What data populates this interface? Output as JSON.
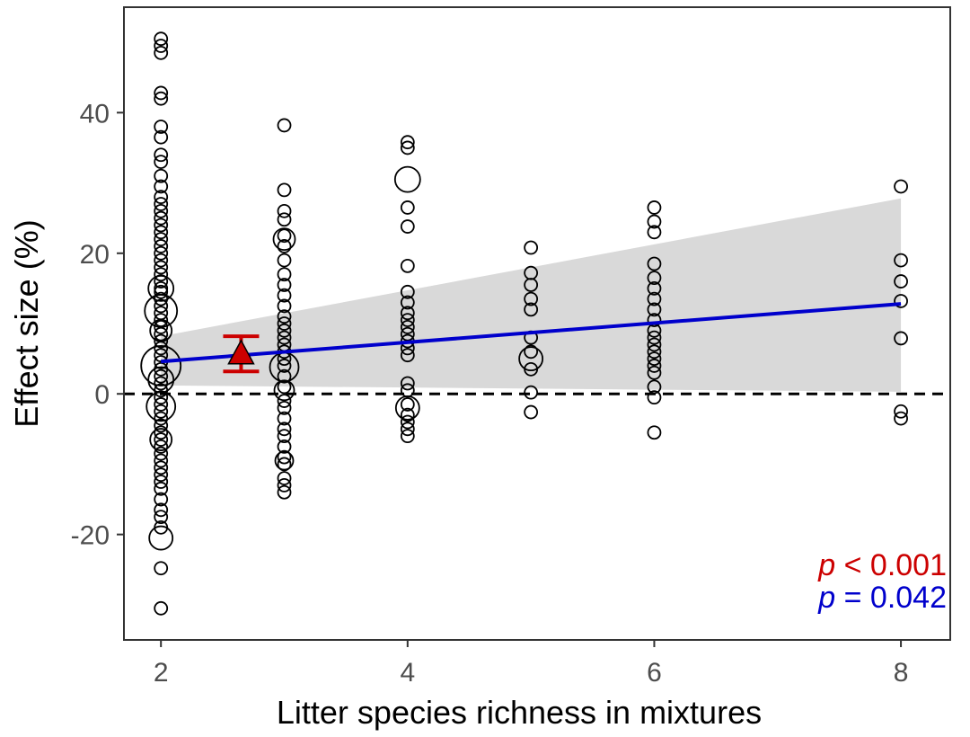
{
  "chart_data": {
    "type": "scatter",
    "xlabel": "Litter species richness in mixtures",
    "ylabel": "Effect size (%)",
    "xlim": [
      1.7,
      8.4
    ],
    "ylim": [
      -35,
      55
    ],
    "x_ticks": [
      2,
      4,
      6,
      8
    ],
    "y_ticks": [
      -20,
      0,
      20,
      40
    ],
    "grid": false,
    "reference_line": {
      "y": 0,
      "style": "dashed"
    },
    "regression": {
      "x": [
        2,
        8
      ],
      "y": [
        4.6,
        12.8
      ],
      "ci_upper": [
        8.2,
        27.8
      ],
      "ci_lower": [
        1.2,
        0.3
      ],
      "color": "#0000cc",
      "ci_color": "#d9d9d9"
    },
    "mean_effect": {
      "x": 2.65,
      "y": 5.8,
      "ci_low": 3.2,
      "ci_high": 8.2,
      "color": "#cc0000",
      "marker": "triangle"
    },
    "annotations": [
      {
        "italic": "p",
        "text": " < 0.001",
        "color": "#cc0000"
      },
      {
        "italic": "p",
        "text": " = 0.042",
        "color": "#0000cc"
      }
    ],
    "point_groups": [
      {
        "x": 2,
        "y": [
          50.5,
          49.5,
          48.5,
          42.8,
          42.0,
          38.0,
          36.5,
          34.0,
          33.0,
          31.0,
          29.5,
          28.0,
          27.0,
          26.0,
          25.0,
          24.0,
          23.0,
          22.0,
          21.0,
          20.0,
          19.0,
          18.0,
          17.0,
          16.0,
          15.0,
          14.5,
          13.5,
          12.5,
          11.5,
          10.5,
          9.5,
          8.5,
          7.5,
          6.5,
          5.5,
          4.5,
          3.5,
          2.5,
          1.5,
          0.5,
          -0.5,
          -1.5,
          -2.5,
          -3.5,
          -4.5,
          -5.5,
          -6.5,
          -7.5,
          -8.5,
          -9.5,
          -10.5,
          -11.5,
          -12.5,
          -13.5,
          -15.0,
          -16.5,
          -17.5,
          -19.0,
          -24.8,
          -30.5
        ],
        "big": [
          {
            "y": 15.0,
            "r": 14
          },
          {
            "y": 11.8,
            "r": 18
          },
          {
            "y": 9.0,
            "r": 12
          },
          {
            "y": 4.0,
            "r": 22
          },
          {
            "y": 2.0,
            "r": 14
          },
          {
            "y": -1.8,
            "r": 16
          },
          {
            "y": -6.5,
            "r": 12
          },
          {
            "y": -20.5,
            "r": 13
          }
        ]
      },
      {
        "x": 3,
        "y": [
          38.2,
          29.0,
          26.0,
          24.8,
          22.5,
          21.0,
          19.0,
          17.0,
          15.5,
          14.0,
          12.5,
          11.0,
          10.0,
          9.0,
          8.0,
          7.0,
          6.0,
          5.0,
          4.0,
          2.5,
          1.0,
          -1.0,
          -2.0,
          -3.5,
          -5.0,
          -6.0,
          -7.5,
          -9.0,
          -10.0,
          -12.0,
          -13.0,
          -14.0
        ],
        "big": [
          {
            "y": 22.0,
            "r": 12
          },
          {
            "y": 3.8,
            "r": 16
          },
          {
            "y": 0.5,
            "r": 11
          },
          {
            "y": -9.5,
            "r": 10
          }
        ]
      },
      {
        "x": 4,
        "y": [
          35.8,
          35.0,
          26.5,
          23.8,
          18.2,
          14.5,
          13.0,
          11.5,
          10.5,
          9.5,
          8.5,
          7.5,
          6.5,
          5.5,
          1.5,
          0.5,
          -1.5,
          -3.0,
          -4.0,
          -5.0,
          -6.0
        ],
        "big": [
          {
            "y": 30.5,
            "r": 14
          },
          {
            "y": -2.0,
            "r": 13
          }
        ]
      },
      {
        "x": 5,
        "y": [
          20.8,
          17.2,
          15.5,
          13.5,
          12.0,
          8.0,
          6.0,
          3.5,
          0.2,
          -2.6
        ],
        "big": [
          {
            "y": 5.0,
            "r": 13
          }
        ]
      },
      {
        "x": 6,
        "y": [
          26.5,
          24.5,
          23.0,
          18.5,
          16.5,
          15.0,
          13.5,
          12.0,
          10.5,
          9.0,
          8.0,
          7.0,
          6.0,
          5.0,
          4.0,
          3.0,
          1.0,
          -0.5,
          -5.5
        ],
        "big": []
      },
      {
        "x": 8,
        "y": [
          29.5,
          19.0,
          16.0,
          13.2,
          7.9,
          -2.5,
          -3.5
        ],
        "big": []
      }
    ]
  }
}
